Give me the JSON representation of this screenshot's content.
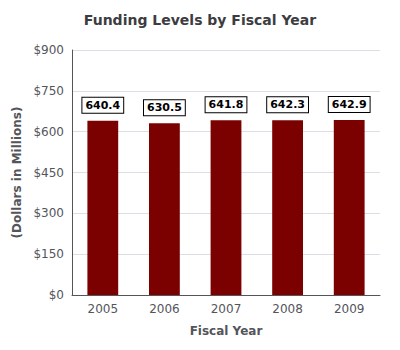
{
  "chart_data": {
    "type": "bar",
    "title": "Funding Levels by Fiscal Year",
    "xlabel": "Fiscal Year",
    "ylabel": "(Dollars in Millions)",
    "categories": [
      "2005",
      "2006",
      "2007",
      "2008",
      "2009"
    ],
    "values": [
      640.4,
      630.5,
      641.8,
      642.3,
      642.9
    ],
    "color": "#7B0000",
    "ylim": [
      0,
      900
    ],
    "yticks": [
      {
        "value": 0,
        "label": "$0"
      },
      {
        "value": 150,
        "label": "$150"
      },
      {
        "value": 300,
        "label": "$300"
      },
      {
        "value": 450,
        "label": "$450"
      },
      {
        "value": 600,
        "label": "$600"
      },
      {
        "value": 750,
        "label": "$750"
      },
      {
        "value": 900,
        "label": "$900"
      }
    ],
    "grid": true,
    "data_labels": true
  }
}
